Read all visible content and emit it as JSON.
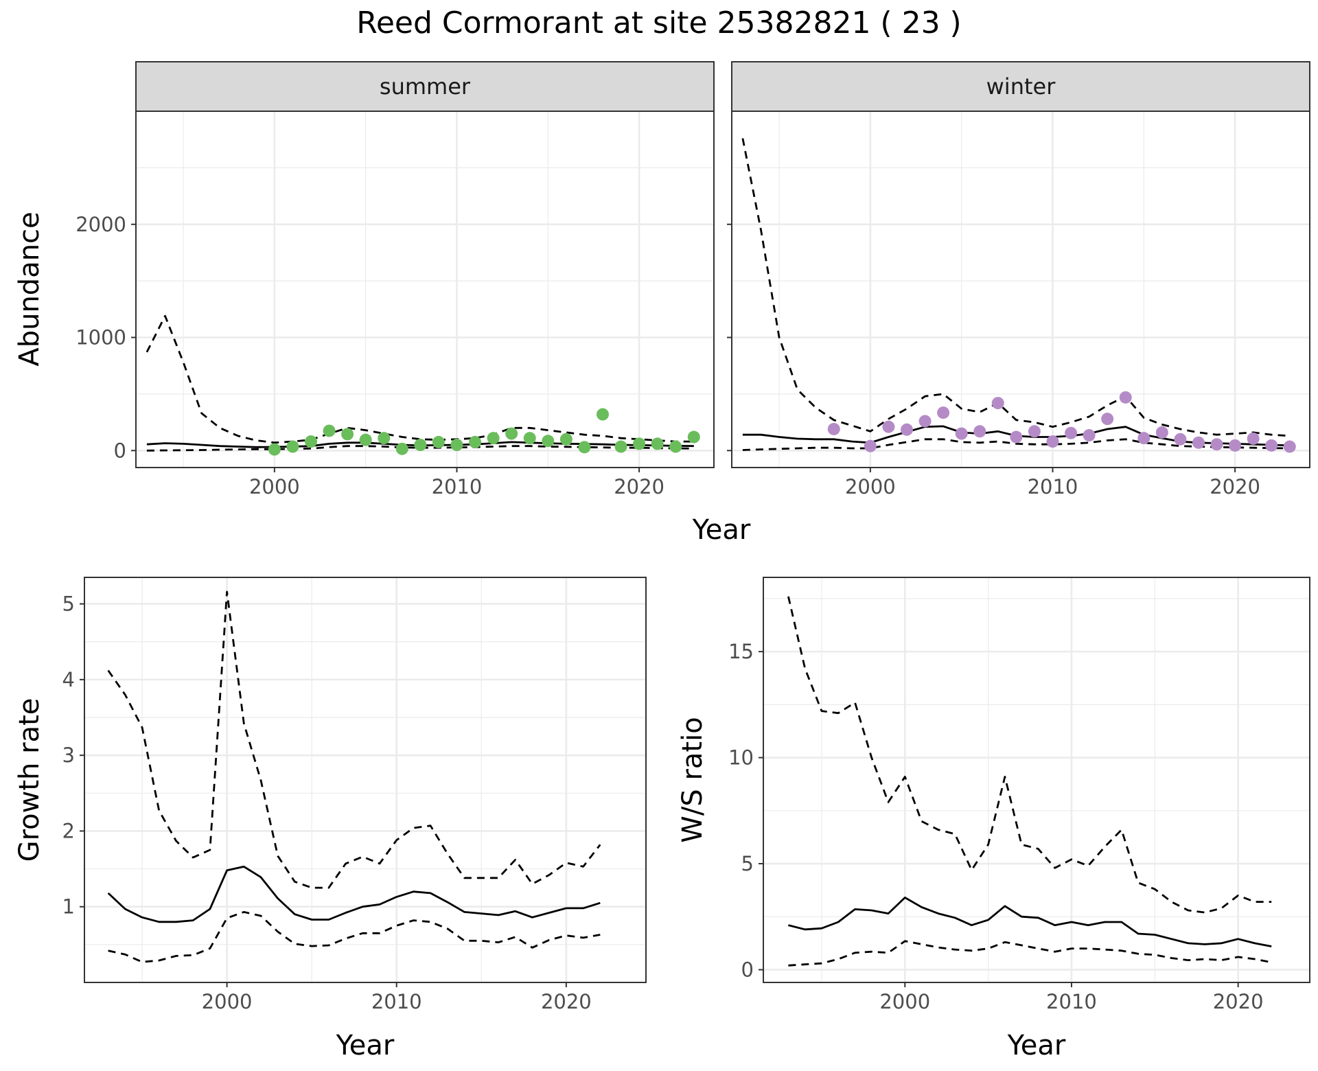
{
  "title": "Reed Cormorant at site 25382821 ( 23 )",
  "colors": {
    "summer_points": "#6abd5b",
    "winter_points": "#b58bc7",
    "lines": "#000000",
    "strip_background": "#d9d9d9",
    "grid": "#ebebeb",
    "panel_border": "#333333"
  },
  "chart_data": [
    {
      "type": "line",
      "panel": "abundance",
      "facets": [
        "summer",
        "winter"
      ],
      "xlabel": "Year",
      "ylabel": "Abundance",
      "xlim": [
        1992.4,
        2024.1
      ],
      "ylim": [
        -150,
        3000
      ],
      "xticks": [
        2000,
        2010,
        2020
      ],
      "yticks": [
        0,
        1000,
        2000
      ],
      "grid": true,
      "series": [
        {
          "facet": "summer",
          "role": "mean",
          "style": "solid",
          "x": [
            1993,
            1994,
            1995,
            1996,
            1997,
            1998,
            1999,
            2000,
            2001,
            2002,
            2003,
            2004,
            2005,
            2006,
            2007,
            2008,
            2009,
            2010,
            2011,
            2012,
            2013,
            2014,
            2015,
            2016,
            2017,
            2018,
            2019,
            2020,
            2021,
            2022,
            2023
          ],
          "y": [
            55,
            65,
            60,
            50,
            40,
            35,
            30,
            32,
            35,
            40,
            60,
            70,
            70,
            60,
            50,
            45,
            48,
            50,
            55,
            65,
            75,
            70,
            65,
            60,
            58,
            55,
            50,
            48,
            45,
            42,
            40
          ]
        },
        {
          "facet": "summer",
          "role": "upper",
          "style": "dashed",
          "x": [
            1993,
            1994,
            1995,
            1996,
            1997,
            1998,
            1999,
            2000,
            2001,
            2002,
            2003,
            2004,
            2005,
            2006,
            2007,
            2008,
            2009,
            2010,
            2011,
            2012,
            2013,
            2014,
            2015,
            2016,
            2017,
            2018,
            2019,
            2020,
            2021,
            2022,
            2023
          ],
          "y": [
            870,
            1190,
            780,
            330,
            200,
            130,
            90,
            70,
            80,
            95,
            150,
            200,
            180,
            150,
            120,
            100,
            95,
            100,
            110,
            140,
            200,
            200,
            180,
            160,
            140,
            130,
            110,
            100,
            90,
            80,
            80
          ]
        },
        {
          "facet": "summer",
          "role": "lower",
          "style": "dashed",
          "x": [
            1993,
            1994,
            1995,
            1996,
            1997,
            1998,
            1999,
            2000,
            2001,
            2002,
            2003,
            2004,
            2005,
            2006,
            2007,
            2008,
            2009,
            2010,
            2011,
            2012,
            2013,
            2014,
            2015,
            2016,
            2017,
            2018,
            2019,
            2020,
            2021,
            2022,
            2023
          ],
          "y": [
            0,
            2,
            3,
            5,
            8,
            10,
            12,
            12,
            15,
            18,
            30,
            40,
            40,
            35,
            28,
            25,
            25,
            28,
            30,
            35,
            40,
            40,
            35,
            33,
            30,
            28,
            25,
            25,
            22,
            20,
            18
          ]
        },
        {
          "facet": "winter",
          "role": "mean",
          "style": "solid",
          "x": [
            1993,
            1994,
            1995,
            1996,
            1997,
            1998,
            1999,
            2000,
            2001,
            2002,
            2003,
            2004,
            2005,
            2006,
            2007,
            2008,
            2009,
            2010,
            2011,
            2012,
            2013,
            2014,
            2015,
            2016,
            2017,
            2018,
            2019,
            2020,
            2021,
            2022,
            2023
          ],
          "y": [
            140,
            140,
            120,
            105,
            100,
            100,
            80,
            70,
            120,
            165,
            210,
            215,
            160,
            150,
            170,
            130,
            120,
            120,
            130,
            150,
            190,
            210,
            140,
            110,
            80,
            70,
            65,
            60,
            55,
            50,
            45
          ]
        },
        {
          "facet": "winter",
          "role": "upper",
          "style": "dashed",
          "x": [
            1993,
            1994,
            1995,
            1996,
            1997,
            1998,
            1999,
            2000,
            2001,
            2002,
            2003,
            2004,
            2005,
            2006,
            2007,
            2008,
            2009,
            2010,
            2011,
            2012,
            2013,
            2014,
            2015,
            2016,
            2017,
            2018,
            2019,
            2020,
            2021,
            2022,
            2023
          ],
          "y": [
            2760,
            1950,
            1000,
            540,
            380,
            270,
            220,
            170,
            280,
            370,
            480,
            500,
            370,
            340,
            420,
            270,
            250,
            210,
            250,
            300,
            400,
            480,
            290,
            230,
            190,
            160,
            140,
            150,
            160,
            140,
            130
          ]
        },
        {
          "facet": "winter",
          "role": "lower",
          "style": "dashed",
          "x": [
            1993,
            1994,
            1995,
            1996,
            1997,
            1998,
            1999,
            2000,
            2001,
            2002,
            2003,
            2004,
            2005,
            2006,
            2007,
            2008,
            2009,
            2010,
            2011,
            2012,
            2013,
            2014,
            2015,
            2016,
            2017,
            2018,
            2019,
            2020,
            2021,
            2022,
            2023
          ],
          "y": [
            5,
            10,
            15,
            20,
            25,
            25,
            20,
            20,
            50,
            75,
            100,
            100,
            75,
            70,
            80,
            60,
            55,
            55,
            60,
            70,
            90,
            100,
            70,
            55,
            40,
            35,
            30,
            28,
            25,
            22,
            20
          ]
        }
      ],
      "points": [
        {
          "facet": "summer",
          "color": "#6abd5b",
          "x": [
            2000,
            2001,
            2002,
            2003,
            2004,
            2005,
            2006,
            2007,
            2008,
            2009,
            2010,
            2011,
            2012,
            2013,
            2014,
            2015,
            2016,
            2017,
            2018,
            2019,
            2020,
            2021,
            2022,
            2023
          ],
          "y": [
            10,
            35,
            80,
            175,
            145,
            95,
            110,
            15,
            50,
            75,
            50,
            75,
            110,
            150,
            110,
            85,
            100,
            30,
            320,
            35,
            60,
            60,
            35,
            120
          ]
        },
        {
          "facet": "winter",
          "color": "#b58bc7",
          "x": [
            1998,
            2000,
            2001,
            2002,
            2003,
            2004,
            2005,
            2006,
            2007,
            2008,
            2009,
            2010,
            2011,
            2012,
            2013,
            2014,
            2015,
            2016,
            2017,
            2018,
            2019,
            2020,
            2021,
            2022,
            2023
          ],
          "y": [
            190,
            40,
            210,
            185,
            260,
            335,
            150,
            170,
            420,
            120,
            170,
            80,
            155,
            135,
            280,
            470,
            110,
            160,
            100,
            70,
            55,
            45,
            105,
            45,
            35
          ]
        }
      ]
    },
    {
      "type": "line",
      "panel": "growth",
      "xlabel": "Year",
      "ylabel": "Growth rate",
      "xlim": [
        1991.6,
        2024.7
      ],
      "ylim": [
        0.0,
        5.35
      ],
      "xticks": [
        2000,
        2010,
        2020
      ],
      "yticks": [
        1,
        2,
        3,
        4,
        5
      ],
      "grid": true,
      "series": [
        {
          "role": "mean",
          "style": "solid",
          "x": [
            1993,
            1994,
            1995,
            1996,
            1997,
            1998,
            1999,
            2000,
            2001,
            2002,
            2003,
            2004,
            2005,
            2006,
            2007,
            2008,
            2009,
            2010,
            2011,
            2012,
            2013,
            2014,
            2015,
            2016,
            2017,
            2018,
            2019,
            2020,
            2021,
            2022
          ],
          "y": [
            1.18,
            0.97,
            0.86,
            0.8,
            0.8,
            0.82,
            0.97,
            1.48,
            1.53,
            1.39,
            1.11,
            0.9,
            0.83,
            0.83,
            0.92,
            1.0,
            1.03,
            1.13,
            1.2,
            1.18,
            1.06,
            0.93,
            0.91,
            0.89,
            0.94,
            0.86,
            0.92,
            0.98,
            0.98,
            1.05
          ]
        },
        {
          "role": "upper",
          "style": "dashed",
          "x": [
            1993,
            1994,
            1995,
            1996,
            1997,
            1998,
            1999,
            2000,
            2001,
            2002,
            2003,
            2004,
            2005,
            2006,
            2007,
            2008,
            2009,
            2010,
            2011,
            2012,
            2013,
            2014,
            2015,
            2016,
            2017,
            2018,
            2019,
            2020,
            2021,
            2022
          ],
          "y": [
            4.12,
            3.8,
            3.37,
            2.27,
            1.87,
            1.65,
            1.75,
            5.16,
            3.42,
            2.67,
            1.67,
            1.33,
            1.25,
            1.25,
            1.57,
            1.66,
            1.57,
            1.88,
            2.04,
            2.07,
            1.7,
            1.38,
            1.38,
            1.38,
            1.62,
            1.3,
            1.42,
            1.58,
            1.53,
            1.82
          ]
        },
        {
          "role": "lower",
          "style": "dashed",
          "x": [
            1993,
            1994,
            1995,
            1996,
            1997,
            1998,
            1999,
            2000,
            2001,
            2002,
            2003,
            2004,
            2005,
            2006,
            2007,
            2008,
            2009,
            2010,
            2011,
            2012,
            2013,
            2014,
            2015,
            2016,
            2017,
            2018,
            2019,
            2020,
            2021,
            2022
          ],
          "y": [
            0.42,
            0.37,
            0.27,
            0.29,
            0.35,
            0.36,
            0.45,
            0.85,
            0.93,
            0.88,
            0.67,
            0.51,
            0.48,
            0.49,
            0.58,
            0.65,
            0.65,
            0.75,
            0.82,
            0.8,
            0.71,
            0.55,
            0.55,
            0.53,
            0.6,
            0.46,
            0.56,
            0.62,
            0.59,
            0.63
          ]
        }
      ]
    },
    {
      "type": "line",
      "panel": "ws_ratio",
      "xlabel": "Year",
      "ylabel": "W/S ratio",
      "xlim": [
        1991.5,
        2024.3
      ],
      "ylim": [
        -0.6,
        18.5
      ],
      "xticks": [
        2000,
        2010,
        2020
      ],
      "yticks": [
        0,
        5,
        10,
        15
      ],
      "grid": true,
      "series": [
        {
          "role": "mean",
          "style": "solid",
          "x": [
            1993,
            1994,
            1995,
            1996,
            1997,
            1998,
            1999,
            2000,
            2001,
            2002,
            2003,
            2004,
            2005,
            2006,
            2007,
            2008,
            2009,
            2010,
            2011,
            2012,
            2013,
            2014,
            2015,
            2016,
            2017,
            2018,
            2019,
            2020,
            2021,
            2022
          ],
          "y": [
            2.1,
            1.9,
            1.95,
            2.25,
            2.85,
            2.8,
            2.65,
            3.4,
            2.95,
            2.65,
            2.45,
            2.1,
            2.35,
            3.0,
            2.5,
            2.45,
            2.1,
            2.25,
            2.1,
            2.25,
            2.25,
            1.7,
            1.65,
            1.45,
            1.25,
            1.2,
            1.25,
            1.45,
            1.25,
            1.1
          ]
        },
        {
          "role": "upper",
          "style": "dashed",
          "x": [
            1993,
            1994,
            1995,
            1996,
            1997,
            1998,
            1999,
            2000,
            2001,
            2002,
            2003,
            2004,
            2005,
            2006,
            2007,
            2008,
            2009,
            2010,
            2011,
            2012,
            2013,
            2014,
            2015,
            2016,
            2017,
            2018,
            2019,
            2020,
            2021,
            2022
          ],
          "y": [
            17.6,
            14.2,
            12.2,
            12.1,
            12.6,
            10.0,
            7.9,
            9.1,
            7.0,
            6.6,
            6.4,
            4.7,
            5.9,
            9.1,
            5.9,
            5.7,
            4.8,
            5.2,
            4.9,
            5.8,
            6.6,
            4.1,
            3.8,
            3.2,
            2.8,
            2.7,
            2.9,
            3.5,
            3.2,
            3.2
          ]
        },
        {
          "role": "lower",
          "style": "dashed",
          "x": [
            1993,
            1994,
            1995,
            1996,
            1997,
            1998,
            1999,
            2000,
            2001,
            2002,
            2003,
            2004,
            2005,
            2006,
            2007,
            2008,
            2009,
            2010,
            2011,
            2012,
            2013,
            2014,
            2015,
            2016,
            2017,
            2018,
            2019,
            2020,
            2021,
            2022
          ],
          "y": [
            0.2,
            0.25,
            0.3,
            0.5,
            0.8,
            0.85,
            0.8,
            1.35,
            1.2,
            1.05,
            0.95,
            0.9,
            1.0,
            1.3,
            1.15,
            1.0,
            0.85,
            1.0,
            1.0,
            0.95,
            0.9,
            0.75,
            0.7,
            0.55,
            0.45,
            0.5,
            0.45,
            0.6,
            0.5,
            0.35
          ]
        }
      ]
    }
  ]
}
